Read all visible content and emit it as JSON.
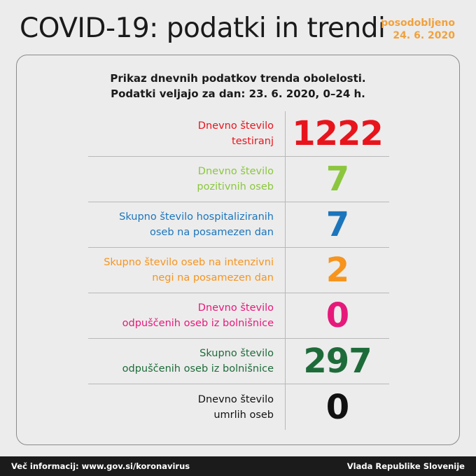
{
  "header": {
    "title": "COVID-19: podatki in trendi",
    "updated_label": "posodobljeno",
    "updated_date": "24. 6. 2020"
  },
  "card": {
    "subtitle_line1": "Prikaz dnevnih podatkov trenda obolelosti.",
    "subtitle_line2": "Podatki veljajo za dan: 23. 6. 2020, 0–24 h."
  },
  "stats": [
    {
      "label_line1": "Dnevno število",
      "label_line2": "testiranj",
      "value": "1222",
      "color": "#e8141c"
    },
    {
      "label_line1": "Dnevno število",
      "label_line2": "pozitivnih oseb",
      "value": "7",
      "color": "#8cc63f"
    },
    {
      "label_line1": "Skupno število hospitaliziranih",
      "label_line2": "oseb na posamezen dan",
      "value": "7",
      "color": "#1b75bc"
    },
    {
      "label_line1": "Skupno število oseb na intenzivni",
      "label_line2": "negi na posamezen dan",
      "value": "2",
      "color": "#f7941d"
    },
    {
      "label_line1": "Dnevno število",
      "label_line2": "odpuščenih oseb iz bolnišnice",
      "value": "0",
      "color": "#e6197a"
    },
    {
      "label_line1": "Skupno število",
      "label_line2": "odpuščenih oseb iz bolnišnice",
      "value": "297",
      "color": "#1e6b3a"
    },
    {
      "label_line1": "Dnevno število",
      "label_line2": "umrlih oseb",
      "value": "0",
      "color": "#111111"
    }
  ],
  "footer": {
    "more_info": "Več informacij: www.gov.si/koronavirus",
    "publisher": "Vlada Republike Slovenije"
  }
}
